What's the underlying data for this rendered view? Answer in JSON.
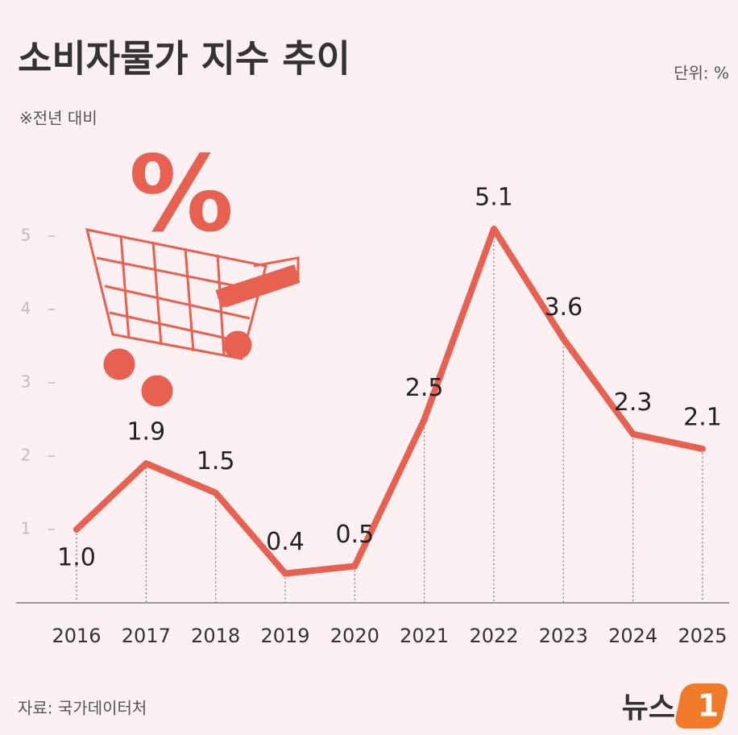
{
  "chart_data": {
    "type": "line",
    "title": "소비자물가 지수 추이",
    "unit": "단위: %",
    "subtitle": "※전년 대비",
    "categories": [
      "2016",
      "2017",
      "2018",
      "2019",
      "2020",
      "2021",
      "2022",
      "2023",
      "2024",
      "2025"
    ],
    "values": [
      1.0,
      1.9,
      1.5,
      0.4,
      0.5,
      2.5,
      5.1,
      3.6,
      2.3,
      2.1
    ],
    "value_labels": [
      "1.0",
      "1.9",
      "1.5",
      "0.4",
      "0.5",
      "2.5",
      "5.1",
      "3.6",
      "2.3",
      "2.1"
    ],
    "color": "#e8604f",
    "ylim": [
      0,
      5
    ],
    "yticks": [
      1,
      2,
      3,
      4,
      5
    ],
    "source": "자료: 국가데이터처",
    "logo_text": "뉴스",
    "logo_number": "1",
    "illustration_symbol": "%"
  }
}
